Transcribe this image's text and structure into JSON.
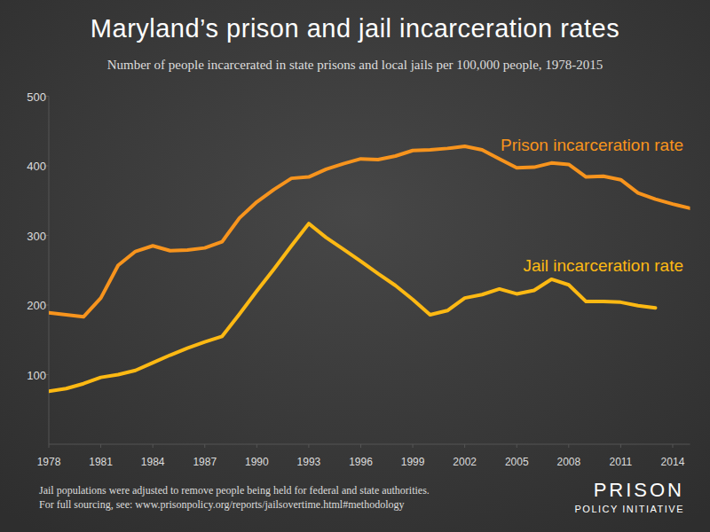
{
  "chart_data": {
    "type": "line",
    "title": "Maryland’s prison and jail incarceration rates",
    "subtitle": "Number of people incarcerated in state prisons and local jails per 100,000 people, 1978-2015",
    "x": [
      1978,
      1979,
      1980,
      1981,
      1982,
      1983,
      1984,
      1985,
      1986,
      1987,
      1988,
      1989,
      1990,
      1991,
      1992,
      1993,
      1994,
      1995,
      1996,
      1997,
      1998,
      1999,
      2000,
      2001,
      2002,
      2003,
      2004,
      2005,
      2006,
      2007,
      2008,
      2009,
      2010,
      2011,
      2012,
      2013,
      2014,
      2015
    ],
    "series": [
      {
        "name": "Prison incarceration rate",
        "color": "#f7941d",
        "values": [
          189,
          186,
          183,
          210,
          257,
          277,
          285,
          278,
          279,
          282,
          291,
          325,
          348,
          366,
          382,
          384,
          395,
          403,
          410,
          409,
          414,
          422,
          423,
          425,
          428,
          423,
          410,
          397,
          398,
          404,
          402,
          384,
          385,
          380,
          361,
          352,
          345,
          339
        ]
      },
      {
        "name": "Jail incarceration rate",
        "color": "#fdb913",
        "values": [
          76,
          80,
          87,
          96,
          100,
          106,
          117,
          128,
          138,
          147,
          155,
          187,
          220,
          252,
          285,
          317,
          297,
          280,
          263,
          245,
          228,
          208,
          186,
          192,
          210,
          215,
          223,
          216,
          221,
          237,
          229,
          205,
          205,
          204,
          199,
          196,
          null,
          null
        ]
      }
    ],
    "xlim": [
      1978,
      2015
    ],
    "xticks": [
      1978,
      1981,
      1984,
      1987,
      1990,
      1993,
      1996,
      1999,
      2002,
      2005,
      2008,
      2011,
      2014
    ],
    "ylim": [
      0,
      500
    ],
    "yticks": [
      100,
      200,
      300,
      400,
      500
    ],
    "grid": false,
    "notes": [
      "Jail populations were adjusted to remove people being held for federal and state authorities.",
      "For full sourcing, see: www.prisonpolicy.org/reports/jailsovertime.html#methodology"
    ],
    "logo": [
      "PRISON",
      "POLICY INITIATIVE"
    ]
  }
}
